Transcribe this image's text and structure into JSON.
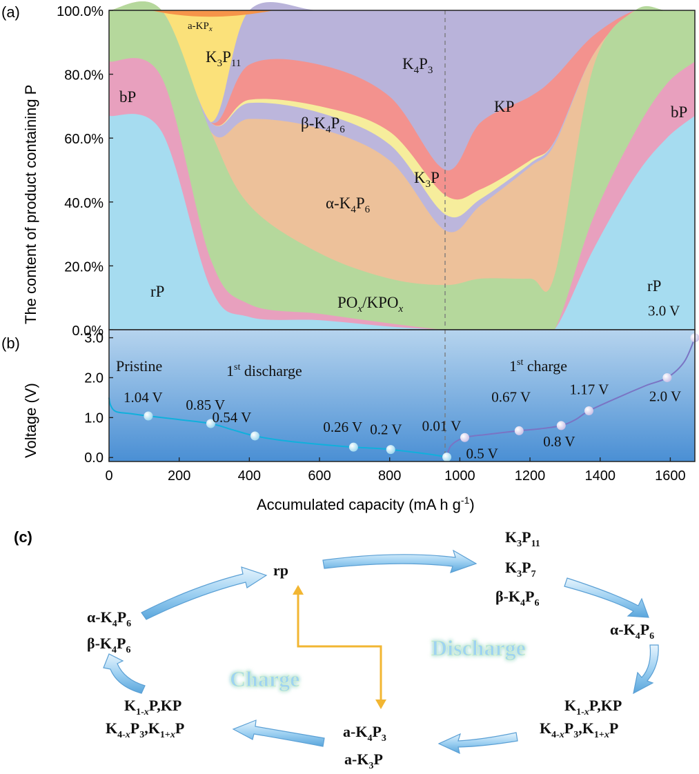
{
  "panel_labels": {
    "a": "(a)",
    "b": "(b)",
    "c": "(c)"
  },
  "colors": {
    "rP": "#a6dcf0",
    "bP": "#e8a0be",
    "POx": "#b5d89c",
    "alphaK4P6": "#edc19a",
    "betaK4P6": "#bcb6dc",
    "K3P": "#f6ed9c",
    "KP": "#f3928e",
    "K4P3": "#b9b3da",
    "K3P11": "#fbe17a",
    "aKPx": "#f5944a",
    "voltage_line": "#10b0dc",
    "charge_line": "#7a74c4",
    "arrow": "#9dd0ef",
    "charge_text_glow": "#a8ec9c",
    "discharge_text_glow": "#a8ec9c",
    "l_arrow": "#f2b632"
  },
  "chart_data": [
    {
      "type": "area",
      "panel": "(a)",
      "stacked": true,
      "xlim": [
        0,
        1670
      ],
      "ylim": [
        0,
        100
      ],
      "ylabel": "The content of product containing P",
      "yticks": [
        "0.0%",
        "20.0%",
        "40.0%",
        "60.0%",
        "80.0%",
        "100.0%"
      ],
      "x": [
        0,
        150,
        290,
        400,
        600,
        800,
        960,
        1060,
        1200,
        1270,
        1380,
        1500,
        1590,
        1670
      ],
      "series": [
        {
          "name": "rP",
          "values": [
            67,
            62,
            13,
            4,
            3,
            1,
            0,
            0,
            0,
            0,
            25,
            48,
            60,
            67
          ]
        },
        {
          "name": "bP",
          "values": [
            17,
            17,
            9,
            4,
            2,
            1,
            0,
            0,
            0,
            0,
            10,
            14,
            17,
            17
          ]
        },
        {
          "name": "POx/KPOx",
          "values": [
            16,
            21,
            40,
            31,
            19,
            14,
            14,
            16,
            16,
            17,
            47,
            38,
            23,
            16
          ]
        },
        {
          "name": "α-K4P6",
          "values": [
            0,
            0,
            0,
            27,
            39,
            37,
            17,
            23,
            35,
            41,
            4,
            0,
            0,
            0
          ]
        },
        {
          "name": "β-K4P6",
          "values": [
            0,
            0,
            3,
            5,
            5,
            5,
            5,
            2,
            1,
            1,
            0,
            0,
            0,
            0
          ]
        },
        {
          "name": "K3P",
          "values": [
            0,
            0,
            0,
            1,
            2,
            4,
            6,
            3,
            1,
            0,
            0,
            0,
            0,
            0
          ]
        },
        {
          "name": "KP",
          "values": [
            0,
            0,
            0,
            11,
            13,
            11,
            8,
            21,
            20,
            20,
            6,
            0,
            0,
            0
          ]
        },
        {
          "name": "K4P3",
          "values": [
            0,
            0,
            0,
            17,
            20,
            27,
            50,
            35,
            27,
            21,
            8,
            0,
            0,
            0
          ]
        },
        {
          "name": "K3P11",
          "values": [
            0,
            0,
            35,
            0,
            0,
            0,
            0,
            0,
            0,
            0,
            0,
            0,
            0,
            0
          ]
        },
        {
          "name": "a-KPx",
          "values": [
            0,
            0,
            0,
            0,
            0,
            0,
            0,
            0,
            0,
            0,
            0,
            0,
            0,
            0
          ]
        }
      ],
      "labels": [
        "a-KPx",
        "K3P11",
        "K4P3",
        "bP",
        "KP",
        "β-K4P6",
        "K3P",
        "α-K4P6",
        "rP",
        "POx/KPOx",
        "rP",
        "bP"
      ]
    },
    {
      "type": "line",
      "panel": "(b)",
      "xlabel": "Accumulated capacity (mA h g-1)",
      "ylabel": "Voltage (V)",
      "xlim": [
        0,
        1670
      ],
      "ylim": [
        -0.1,
        3.2
      ],
      "xticks": [
        "0",
        "200",
        "400",
        "600",
        "800",
        "1000",
        "1200",
        "1400",
        "1600"
      ],
      "yticks": [
        "0.0",
        "1.0",
        "2.0",
        "3.0"
      ],
      "series": [
        {
          "name": "1st discharge",
          "x": [
            0,
            5,
            20,
            60,
            112,
            200,
            290,
            350,
            416,
            500,
            600,
            697,
            760,
            803,
            880,
            930,
            963
          ],
          "y": [
            1.5,
            1.3,
            1.15,
            1.1,
            1.04,
            0.95,
            0.85,
            0.7,
            0.54,
            0.42,
            0.33,
            0.26,
            0.23,
            0.2,
            0.12,
            0.06,
            0.01
          ]
        },
        {
          "name": "1st charge",
          "x": [
            963,
            975,
            1014,
            1080,
            1169,
            1230,
            1289,
            1330,
            1368,
            1450,
            1530,
            1591,
            1640,
            1670
          ],
          "y": [
            0.01,
            0.3,
            0.5,
            0.58,
            0.67,
            0.72,
            0.8,
            0.95,
            1.17,
            1.5,
            1.8,
            2.0,
            2.4,
            3.0
          ]
        }
      ],
      "markers": [
        {
          "x": 112,
          "y": 1.04,
          "label": "1.04 V"
        },
        {
          "x": 290,
          "y": 0.85,
          "label": "0.85 V"
        },
        {
          "x": 416,
          "y": 0.54,
          "label": "0.54 V"
        },
        {
          "x": 697,
          "y": 0.26,
          "label": "0.26 V"
        },
        {
          "x": 803,
          "y": 0.2,
          "label": "0.2 V"
        },
        {
          "x": 963,
          "y": 0.01,
          "label": "0.01 V"
        },
        {
          "x": 1014,
          "y": 0.5,
          "label": "0.5 V"
        },
        {
          "x": 1169,
          "y": 0.67,
          "label": "0.67 V"
        },
        {
          "x": 1289,
          "y": 0.8,
          "label": "0.8 V"
        },
        {
          "x": 1368,
          "y": 1.17,
          "label": "1.17 V"
        },
        {
          "x": 1591,
          "y": 2.0,
          "label": "2.0 V"
        },
        {
          "x": 1670,
          "y": 3.0,
          "label": "3.0 V"
        }
      ],
      "annotations": {
        "pristine": "Pristine",
        "discharge_sup": "st",
        "discharge_num": "1",
        "discharge_word": "discharge",
        "charge_num": "1",
        "charge_sup": "st",
        "charge_word": "charge"
      }
    }
  ],
  "diagram_c": {
    "nodes": {
      "rp": "rp",
      "top_right": [
        "K3P11",
        "K3P7",
        "β-K4P6"
      ],
      "right_mid": "α-K4P6",
      "right_low": [
        "K1-xP,KP",
        "K4-xP3,K1+xP"
      ],
      "bottom": [
        "a-K4P3",
        "a-K3P"
      ],
      "left_low": [
        "K1-xP,KP",
        "K4-xP3,K1+xP"
      ],
      "left_top": [
        "α-K4P6",
        "β-K4P6"
      ]
    },
    "discharge_label": "Discharge",
    "charge_label": "Charge"
  }
}
